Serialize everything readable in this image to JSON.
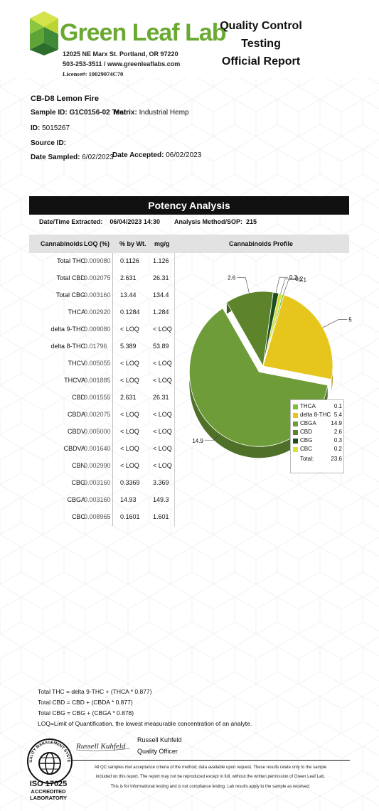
{
  "header": {
    "brand": "Green Leaf Lab",
    "registered_mark": "®",
    "address_line1": "12025 NE Marx St. Portland, OR 97220",
    "address_line2": "503-253-3511 / www.greenleaflabs.com",
    "license": "License#: 10029074C70",
    "report_title_line1": "Quality Control Testing",
    "report_title_line2": "Official Report",
    "brand_color": "#6aaa33"
  },
  "sample": {
    "product": "CB-D8 Lemon Fire",
    "sample_id_label": "Sample ID:",
    "sample_id": "G1C0156-02 Test",
    "matrix_label": "Matrix:",
    "matrix": "Industrial Hemp",
    "id_label": "ID:",
    "id": "5015267",
    "source_id_label": "Source ID:",
    "source_id": "",
    "date_sampled_label": "Date Sampled:",
    "date_sampled": "6/02/2023",
    "date_accepted_label": "Date Accepted:",
    "date_accepted": "06/02/2023"
  },
  "potency": {
    "title": "Potency Analysis",
    "extracted_label": "Date/Time Extracted:",
    "extracted_value": "06/04/2023  14:30",
    "method_label": "Analysis Method/SOP:",
    "method_value": "215",
    "columns": [
      "Cannabinoids",
      "LOQ (%)",
      "% by Wt.",
      "mg/g"
    ],
    "profile_title": "Cannabinoids Profile",
    "rows": [
      {
        "name": "Total THC",
        "loq": "0.009080",
        "wt": "0.1126",
        "mg": "1.126"
      },
      {
        "name": "Total CBD",
        "loq": "0.002075",
        "wt": "2.631",
        "mg": "26.31"
      },
      {
        "name": "Total CBG",
        "loq": "0.003160",
        "wt": "13.44",
        "mg": "134.4"
      },
      {
        "name": "THCA",
        "loq": "0.002920",
        "wt": "0.1284",
        "mg": "1.284"
      },
      {
        "name": "delta 9-THC",
        "loq": "0.009080",
        "wt": "< LOQ",
        "mg": "< LOQ"
      },
      {
        "name": "delta 8-THC",
        "loq": "0.01796",
        "wt": "5.389",
        "mg": "53.89"
      },
      {
        "name": "THCV",
        "loq": "0.005055",
        "wt": "< LOQ",
        "mg": "< LOQ"
      },
      {
        "name": "THCVA",
        "loq": "0.001885",
        "wt": "< LOQ",
        "mg": "< LOQ"
      },
      {
        "name": "CBD",
        "loq": "0.001555",
        "wt": "2.631",
        "mg": "26.31"
      },
      {
        "name": "CBDA",
        "loq": "0.002075",
        "wt": "< LOQ",
        "mg": "< LOQ"
      },
      {
        "name": "CBDV",
        "loq": "0.005000",
        "wt": "< LOQ",
        "mg": "< LOQ"
      },
      {
        "name": "CBDVA",
        "loq": "0.001640",
        "wt": "< LOQ",
        "mg": "< LOQ"
      },
      {
        "name": "CBN",
        "loq": "0.002990",
        "wt": "< LOQ",
        "mg": "< LOQ"
      },
      {
        "name": "CBG",
        "loq": "0.003160",
        "wt": "0.3369",
        "mg": "3.369"
      },
      {
        "name": "CBGA",
        "loq": "0.003160",
        "wt": "14.93",
        "mg": "149.3"
      },
      {
        "name": "CBC",
        "loq": "0.008965",
        "wt": "0.1601",
        "mg": "1.601"
      }
    ]
  },
  "chart_data": {
    "type": "pie",
    "title": "Cannabinoids Profile",
    "slices": [
      {
        "label": "THCA",
        "value": 0.1,
        "outer_label": "0.1",
        "color": "#7dbf3a"
      },
      {
        "label": "delta 8-THC",
        "value": 5.4,
        "outer_label": "5",
        "color": "#e6c61c"
      },
      {
        "label": "CBGA",
        "value": 14.9,
        "outer_label": "14.9",
        "color": "#6e9c38"
      },
      {
        "label": "CBD",
        "value": 2.6,
        "outer_label": "2.6",
        "color": "#5d842a"
      },
      {
        "label": "CBG",
        "value": 0.3,
        "outer_label": "0.3",
        "color": "#1e4d1e"
      },
      {
        "label": "CBC",
        "value": 0.2,
        "outer_label": "0.2",
        "color": "#d6e23a"
      }
    ],
    "legend": {
      "items": [
        {
          "label": "THCA",
          "value": "0.1",
          "color": "#7dbf3a"
        },
        {
          "label": "delta 8-THC",
          "value": "5.4",
          "color": "#e6c61c"
        },
        {
          "label": "CBGA",
          "value": "14.9",
          "color": "#6e9c38"
        },
        {
          "label": "CBD",
          "value": "2.6",
          "color": "#5d842a"
        },
        {
          "label": "CBG",
          "value": "0.3",
          "color": "#1e4d1e"
        },
        {
          "label": "CBC",
          "value": "0.2",
          "color": "#d6e23a"
        }
      ],
      "total_label": "Total:",
      "total_value": "23.6",
      "placement": "bottom-right"
    }
  },
  "footer": {
    "formula_thc": "Total THC =  delta 9-THC + (THCA * 0.877)",
    "formula_cbd": "Total CBD =  CBD + (CBDA * 0.877)",
    "formula_cbg": "Total CBG = CBG + (CBGA * 0.878)",
    "loq_note": "LOQ=Limit of Quantification, the lowest measurable concentration of an analyte.",
    "signer_name": "Russell Kuhfeld",
    "signer_title": "Quality Officer",
    "signature_text": "Russell Kuhfeld",
    "seal_text": "QUALITY MANAGEMENT SYSTEM",
    "iso_line1": "ISO 17025",
    "iso_line2": "ACCREDITED",
    "iso_line3": "LABORATORY",
    "disclaimer1": "All QC samples met acceptance criteria of the method; data available upon request. These results relate only to the sample",
    "disclaimer2": "included on this report. The report may not be reproduced except in full, without the written permission of Green Leaf Lab.",
    "disclaimer3": "This is for informational testing and is not compliance testing. Lab results apply to the sample as received."
  }
}
